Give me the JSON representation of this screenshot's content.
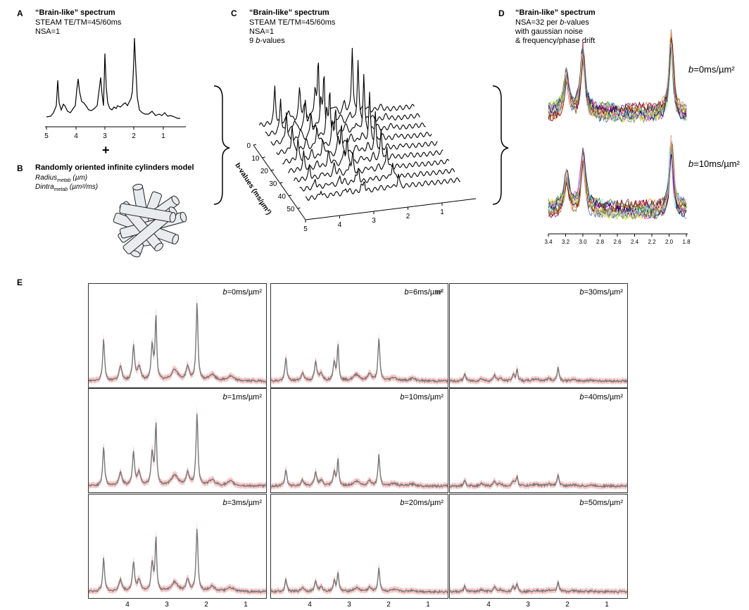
{
  "panels": {
    "A": {
      "letter": "A",
      "title": "“Brain-like” spectrum",
      "line1": "STEAM TE/TM=45/60ms",
      "line2": "NSA=1",
      "ticks": [
        "5",
        "4",
        "3",
        "2",
        "1"
      ]
    },
    "plus": "+",
    "B": {
      "letter": "B",
      "title": "Randomly oriented infinite cylinders model",
      "p1_main": "Radius",
      "p1_sub": "metab",
      "p1_unit": " (µm)",
      "p2_main": "Dintra",
      "p2_sub": "metab",
      "p2_unit": " (µm²/ms)"
    },
    "C": {
      "letter": "C",
      "title": "“Brain-like” spectrum",
      "line1": "STEAM TE/TM=45/60ms",
      "line2": "NSA=1",
      "line3_pre": "9 ",
      "line3_b": "b",
      "line3_post": "-values",
      "axis_label": "b-values (ms/µm²)",
      "b_ticks": [
        "0",
        "10",
        "20",
        "30",
        "40",
        "50"
      ],
      "ppm_ticks": [
        "5",
        "4",
        "3",
        "2",
        "1"
      ]
    },
    "D": {
      "letter": "D",
      "title": "“Brain-like” spectrum",
      "line1_pre": "NSA=32 per ",
      "line1_b": "b",
      "line1_post": "-values",
      "line2": "with gaussian noise",
      "line3": "& frequency/phase drift",
      "b0_label": "=0ms/µm²",
      "b10_label": "=10ms/µm²",
      "b_letter": "b",
      "ticks": [
        "3.4",
        "3.2",
        "3.0",
        "2.8",
        "2.6",
        "2.4",
        "2.2",
        "2.0",
        "1.8"
      ]
    },
    "E": {
      "letter": "E",
      "b_letter": "b",
      "labels": [
        "=0ms/µm²",
        "=6ms/µm²",
        "=30ms/µm²",
        "=1ms/µm²",
        "=10ms/µm²",
        "=40ms/µm²",
        "=3ms/µm²",
        "=20ms/µm²",
        "=50ms/µm²"
      ],
      "stray_mark": "n²",
      "ticks": [
        "4",
        "3",
        "2",
        "1"
      ]
    }
  },
  "colors": {
    "spectrum": "#000000",
    "mean": "#777777",
    "band": "#f6b3b3",
    "frame": "#333333"
  }
}
